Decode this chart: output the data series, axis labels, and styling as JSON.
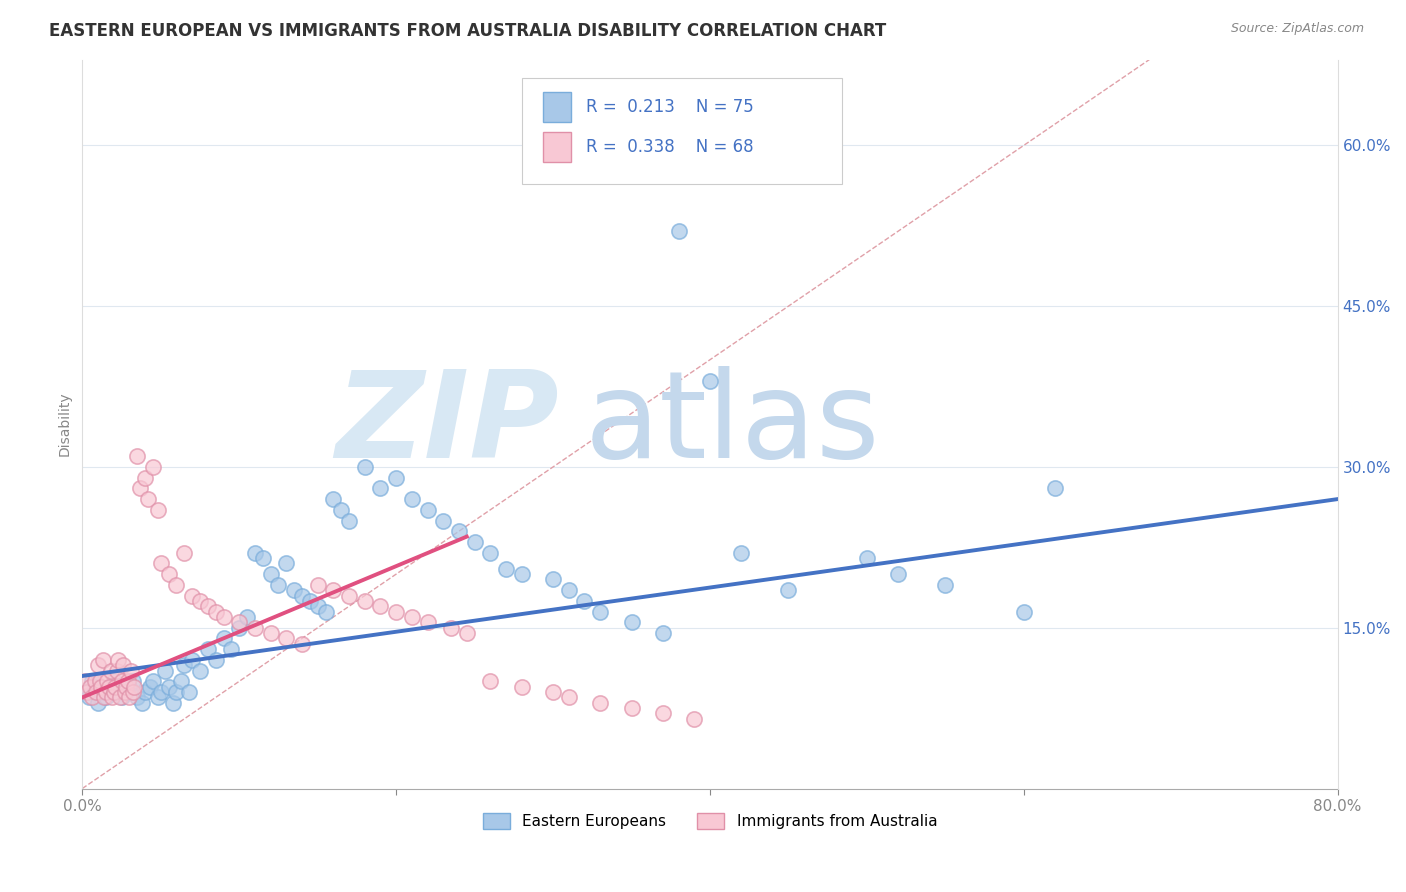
{
  "title": "EASTERN EUROPEAN VS IMMIGRANTS FROM AUSTRALIA DISABILITY CORRELATION CHART",
  "source": "Source: ZipAtlas.com",
  "ylabel": "Disability",
  "xlim": [
    0.0,
    0.8
  ],
  "ylim": [
    0.0,
    0.68
  ],
  "xticks": [
    0.0,
    0.2,
    0.4,
    0.6,
    0.8
  ],
  "xtick_labels": [
    "0.0%",
    "",
    "",
    "",
    "80.0%"
  ],
  "yticks_right": [
    0.15,
    0.3,
    0.45,
    0.6
  ],
  "ytick_labels_right": [
    "15.0%",
    "30.0%",
    "45.0%",
    "60.0%"
  ],
  "blue_color": "#A8C8E8",
  "blue_edge_color": "#7AADDB",
  "blue_line_color": "#4472C4",
  "pink_color": "#F8C8D4",
  "pink_edge_color": "#E090A8",
  "pink_line_color": "#E05080",
  "diag_color": "#E0A0A8",
  "grid_color": "#E0E8F0",
  "legend_text_color": "#4472C4",
  "title_color": "#333333",
  "source_color": "#888888",
  "ylabel_color": "#888888",
  "title_fontsize": 12,
  "label_fontsize": 10,
  "tick_fontsize": 11,
  "legend_fontsize": 12,
  "watermark_zip_color": "#D8E8F4",
  "watermark_atlas_color": "#C4D8EC",
  "blue_line_x0": 0.0,
  "blue_line_x1": 0.8,
  "blue_line_y0": 0.105,
  "blue_line_y1": 0.27,
  "pink_line_x0": 0.0,
  "pink_line_x1": 0.245,
  "pink_line_y0": 0.085,
  "pink_line_y1": 0.235,
  "diag_line_x0": 0.0,
  "diag_line_x1": 0.68,
  "diag_line_y0": 0.0,
  "diag_line_y1": 0.68,
  "blue_x": [
    0.003,
    0.004,
    0.006,
    0.008,
    0.01,
    0.012,
    0.015,
    0.017,
    0.02,
    0.022,
    0.025,
    0.028,
    0.03,
    0.032,
    0.035,
    0.038,
    0.04,
    0.043,
    0.045,
    0.048,
    0.05,
    0.053,
    0.055,
    0.058,
    0.06,
    0.063,
    0.065,
    0.068,
    0.07,
    0.075,
    0.08,
    0.085,
    0.09,
    0.095,
    0.1,
    0.105,
    0.11,
    0.115,
    0.12,
    0.125,
    0.13,
    0.135,
    0.14,
    0.145,
    0.15,
    0.155,
    0.16,
    0.165,
    0.17,
    0.18,
    0.19,
    0.2,
    0.21,
    0.22,
    0.23,
    0.24,
    0.25,
    0.26,
    0.27,
    0.28,
    0.3,
    0.31,
    0.32,
    0.33,
    0.35,
    0.37,
    0.38,
    0.4,
    0.42,
    0.45,
    0.5,
    0.52,
    0.55,
    0.6,
    0.62
  ],
  "blue_y": [
    0.09,
    0.085,
    0.1,
    0.095,
    0.08,
    0.09,
    0.085,
    0.095,
    0.1,
    0.09,
    0.085,
    0.09,
    0.095,
    0.1,
    0.085,
    0.08,
    0.09,
    0.095,
    0.1,
    0.085,
    0.09,
    0.11,
    0.095,
    0.08,
    0.09,
    0.1,
    0.115,
    0.09,
    0.12,
    0.11,
    0.13,
    0.12,
    0.14,
    0.13,
    0.15,
    0.16,
    0.22,
    0.215,
    0.2,
    0.19,
    0.21,
    0.185,
    0.18,
    0.175,
    0.17,
    0.165,
    0.27,
    0.26,
    0.25,
    0.3,
    0.28,
    0.29,
    0.27,
    0.26,
    0.25,
    0.24,
    0.23,
    0.22,
    0.205,
    0.2,
    0.195,
    0.185,
    0.175,
    0.165,
    0.155,
    0.145,
    0.52,
    0.38,
    0.22,
    0.185,
    0.215,
    0.2,
    0.19,
    0.165,
    0.28
  ],
  "pink_x": [
    0.002,
    0.003,
    0.005,
    0.006,
    0.008,
    0.009,
    0.01,
    0.011,
    0.012,
    0.013,
    0.014,
    0.015,
    0.016,
    0.017,
    0.018,
    0.019,
    0.02,
    0.021,
    0.022,
    0.023,
    0.024,
    0.025,
    0.026,
    0.027,
    0.028,
    0.029,
    0.03,
    0.031,
    0.032,
    0.033,
    0.035,
    0.037,
    0.04,
    0.042,
    0.045,
    0.048,
    0.05,
    0.055,
    0.06,
    0.065,
    0.07,
    0.075,
    0.08,
    0.085,
    0.09,
    0.1,
    0.11,
    0.12,
    0.13,
    0.14,
    0.15,
    0.16,
    0.17,
    0.18,
    0.19,
    0.2,
    0.21,
    0.22,
    0.235,
    0.245,
    0.26,
    0.28,
    0.3,
    0.31,
    0.33,
    0.35,
    0.37,
    0.39
  ],
  "pink_y": [
    0.1,
    0.09,
    0.095,
    0.085,
    0.1,
    0.09,
    0.115,
    0.1,
    0.095,
    0.12,
    0.085,
    0.09,
    0.1,
    0.095,
    0.11,
    0.085,
    0.09,
    0.095,
    0.11,
    0.12,
    0.085,
    0.1,
    0.115,
    0.09,
    0.095,
    0.1,
    0.085,
    0.11,
    0.09,
    0.095,
    0.31,
    0.28,
    0.29,
    0.27,
    0.3,
    0.26,
    0.21,
    0.2,
    0.19,
    0.22,
    0.18,
    0.175,
    0.17,
    0.165,
    0.16,
    0.155,
    0.15,
    0.145,
    0.14,
    0.135,
    0.19,
    0.185,
    0.18,
    0.175,
    0.17,
    0.165,
    0.16,
    0.155,
    0.15,
    0.145,
    0.1,
    0.095,
    0.09,
    0.085,
    0.08,
    0.075,
    0.07,
    0.065
  ]
}
